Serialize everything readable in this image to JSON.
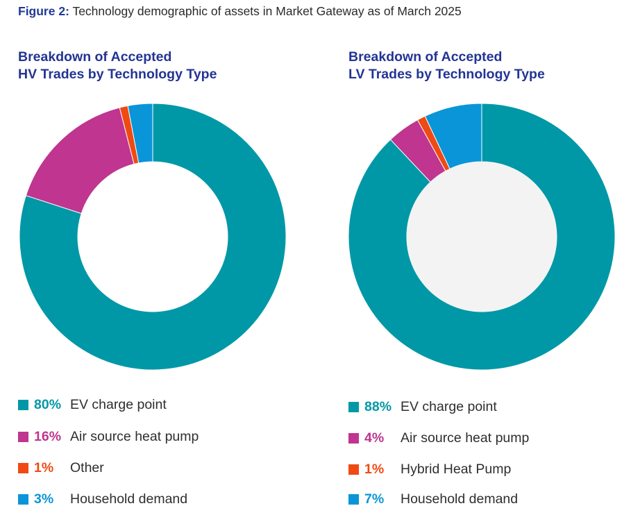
{
  "figure": {
    "label": "Figure 2:",
    "caption": "Technology demographic of assets in Market Gateway as of March 2025"
  },
  "colors": {
    "ev": "#0098A6",
    "ashp": "#BF358F",
    "other": "#EF4A13",
    "household": "#0A95D8",
    "hole_hv": "#FFFFFF",
    "hole_lv": "#F3F3F3"
  },
  "chart_data": [
    {
      "type": "pie",
      "title_lines": [
        "Breakdown of Accepted",
        "HV Trades by Technology Type"
      ],
      "slices": [
        {
          "label": "EV charge point",
          "value": 80,
          "pct_label": "80%",
          "color_key": "ev"
        },
        {
          "label": "Air source heat pump",
          "value": 16,
          "pct_label": "16%",
          "color_key": "ashp"
        },
        {
          "label": "Other",
          "value": 1,
          "pct_label": "1%",
          "color_key": "other"
        },
        {
          "label": "Household demand",
          "value": 3,
          "pct_label": "3%",
          "color_key": "household"
        }
      ]
    },
    {
      "type": "pie",
      "title_lines": [
        "Breakdown of Accepted",
        "LV Trades by Technology Type"
      ],
      "slices": [
        {
          "label": "EV charge point",
          "value": 88,
          "pct_label": "88%",
          "color_key": "ev"
        },
        {
          "label": "Air source heat pump",
          "value": 4,
          "pct_label": "4%",
          "color_key": "ashp"
        },
        {
          "label": "Hybrid Heat Pump",
          "value": 1,
          "pct_label": "1%",
          "color_key": "other"
        },
        {
          "label": "Household demand",
          "value": 7,
          "pct_label": "7%",
          "color_key": "household"
        }
      ]
    }
  ]
}
